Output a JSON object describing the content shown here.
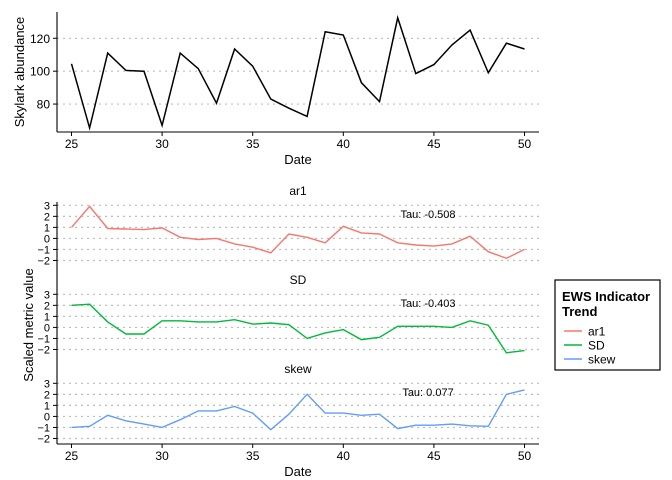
{
  "colors": {
    "ar1": "#F8766D",
    "SD": "#00BA38",
    "skew": "#619CFF",
    "abundance": "#000000",
    "grid": "#bdbdbd"
  },
  "chart_data": [
    {
      "type": "line",
      "xlabel": "Date",
      "ylabel": "Skylark abundance",
      "x": [
        25,
        26,
        27,
        28,
        29,
        30,
        31,
        32,
        33,
        34,
        35,
        36,
        37,
        38,
        39,
        40,
        41,
        42,
        43,
        44,
        45,
        46,
        47,
        48,
        49,
        50
      ],
      "values": [
        104.5,
        65.5,
        111,
        100.5,
        100,
        67,
        111,
        101.5,
        80.5,
        113.5,
        103,
        83,
        77.5,
        72.5,
        124,
        122,
        93,
        81.5,
        132.5,
        98.5,
        104,
        116,
        125,
        99,
        117,
        113.5
      ],
      "xlim": [
        24.2,
        50.8
      ],
      "ylim": [
        63,
        136
      ],
      "xticks": [
        25,
        30,
        35,
        40,
        45,
        50
      ],
      "yticks": [
        80,
        100,
        120
      ]
    },
    {
      "type": "line",
      "shared_xlabel": "Date",
      "shared_ylabel": "Scaled metric value",
      "x": [
        25,
        26,
        27,
        28,
        29,
        30,
        31,
        32,
        33,
        34,
        35,
        36,
        37,
        38,
        39,
        40,
        41,
        42,
        43,
        44,
        45,
        46,
        47,
        48,
        49,
        50
      ],
      "xlim": [
        24.2,
        50.8
      ],
      "ylim": [
        -2.5,
        3.3
      ],
      "xticks": [
        25,
        30,
        35,
        40,
        45,
        50
      ],
      "yticks": [
        3,
        2,
        1,
        0,
        -1,
        -2
      ],
      "panels": [
        {
          "name": "ar1",
          "tau_label": "Tau: -0.508",
          "values": [
            1.0,
            2.9,
            0.9,
            0.85,
            0.8,
            0.95,
            0.1,
            -0.1,
            0.0,
            -0.5,
            -0.8,
            -1.3,
            0.4,
            0.1,
            -0.4,
            1.1,
            0.5,
            0.4,
            -0.4,
            -0.6,
            -0.7,
            -0.5,
            0.2,
            -1.2,
            -1.8,
            -1.0
          ]
        },
        {
          "name": "SD",
          "tau_label": "Tau: -0.403",
          "values": [
            2.0,
            2.1,
            0.5,
            -0.6,
            -0.6,
            0.6,
            0.6,
            0.5,
            0.5,
            0.7,
            0.3,
            0.4,
            0.25,
            -1.0,
            -0.5,
            -0.2,
            -1.1,
            -0.9,
            0.1,
            0.1,
            0.1,
            0.0,
            0.6,
            0.2,
            -2.3,
            -2.1
          ]
        },
        {
          "name": "skew",
          "tau_label": "Tau: 0.077",
          "values": [
            -1.0,
            -0.9,
            0.1,
            -0.4,
            -0.7,
            -1.0,
            -0.3,
            0.5,
            0.5,
            0.9,
            0.3,
            -1.2,
            0.2,
            2.0,
            0.3,
            0.3,
            0.1,
            0.2,
            -1.1,
            -0.8,
            -0.8,
            -0.7,
            -0.85,
            -0.9,
            2.0,
            2.4
          ]
        }
      ],
      "legend": {
        "title": "EWS Indicator Trend",
        "entries": [
          "ar1",
          "SD",
          "skew"
        ]
      }
    }
  ]
}
